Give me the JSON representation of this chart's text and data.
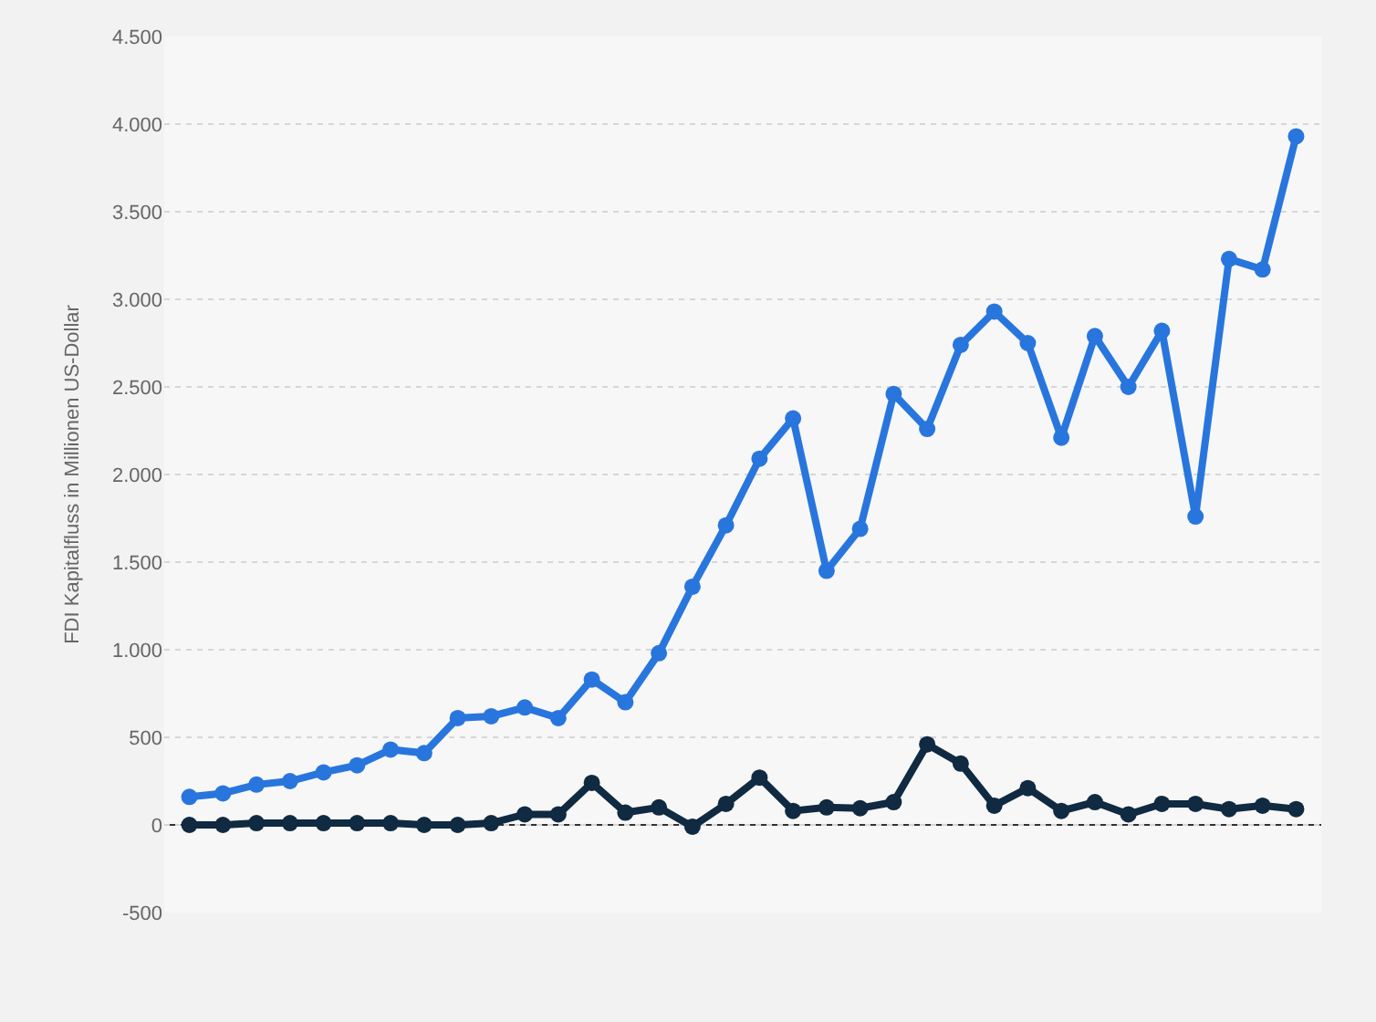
{
  "chart_data": {
    "type": "line",
    "ylabel": "FDI Kapitalfluss in Millionen US-Dollar",
    "categories": [
      null,
      null,
      null,
      null,
      null,
      null,
      null,
      null,
      null,
      null,
      null,
      null,
      null,
      null,
      null,
      null,
      null,
      null,
      null,
      null,
      null,
      null,
      null,
      null,
      null,
      null,
      null,
      null,
      null,
      null,
      null,
      null,
      null,
      null
    ],
    "series": [
      {
        "color": "#2876dd",
        "values": [
          160,
          180,
          230,
          250,
          300,
          340,
          430,
          410,
          610,
          620,
          670,
          610,
          830,
          700,
          980,
          1360,
          1710,
          2090,
          2320,
          1450,
          1690,
          2460,
          2260,
          2740,
          2930,
          2750,
          2210,
          2790,
          2500,
          2820,
          1760,
          3230,
          3170,
          3930
        ]
      },
      {
        "color": "#0f2a41",
        "values": [
          0,
          0,
          10,
          10,
          10,
          10,
          10,
          0,
          0,
          10,
          60,
          60,
          240,
          70,
          100,
          -10,
          120,
          270,
          80,
          100,
          95,
          130,
          460,
          350,
          110,
          210,
          80,
          130,
          60,
          120,
          120,
          90,
          110,
          90
        ]
      }
    ],
    "ylim": [
      -500,
      4500
    ],
    "yticks": [
      {
        "value": -500,
        "label": "-500"
      },
      {
        "value": 0,
        "label": "0"
      },
      {
        "value": 500,
        "label": "500"
      },
      {
        "value": 1000,
        "label": "1.000"
      },
      {
        "value": 1500,
        "label": "1.500"
      },
      {
        "value": 2000,
        "label": "2.000"
      },
      {
        "value": 2500,
        "label": "2.500"
      },
      {
        "value": 3000,
        "label": "3.000"
      },
      {
        "value": 3500,
        "label": "3.500"
      },
      {
        "value": 4000,
        "label": "4.000"
      },
      {
        "value": 4500,
        "label": "4.500"
      }
    ],
    "ref_lines": [
      {
        "axis": "y",
        "value": 0,
        "color": "#333333"
      }
    ],
    "grid": "y",
    "tick_labels": "y",
    "marker": "circle",
    "line_style": "solid"
  }
}
